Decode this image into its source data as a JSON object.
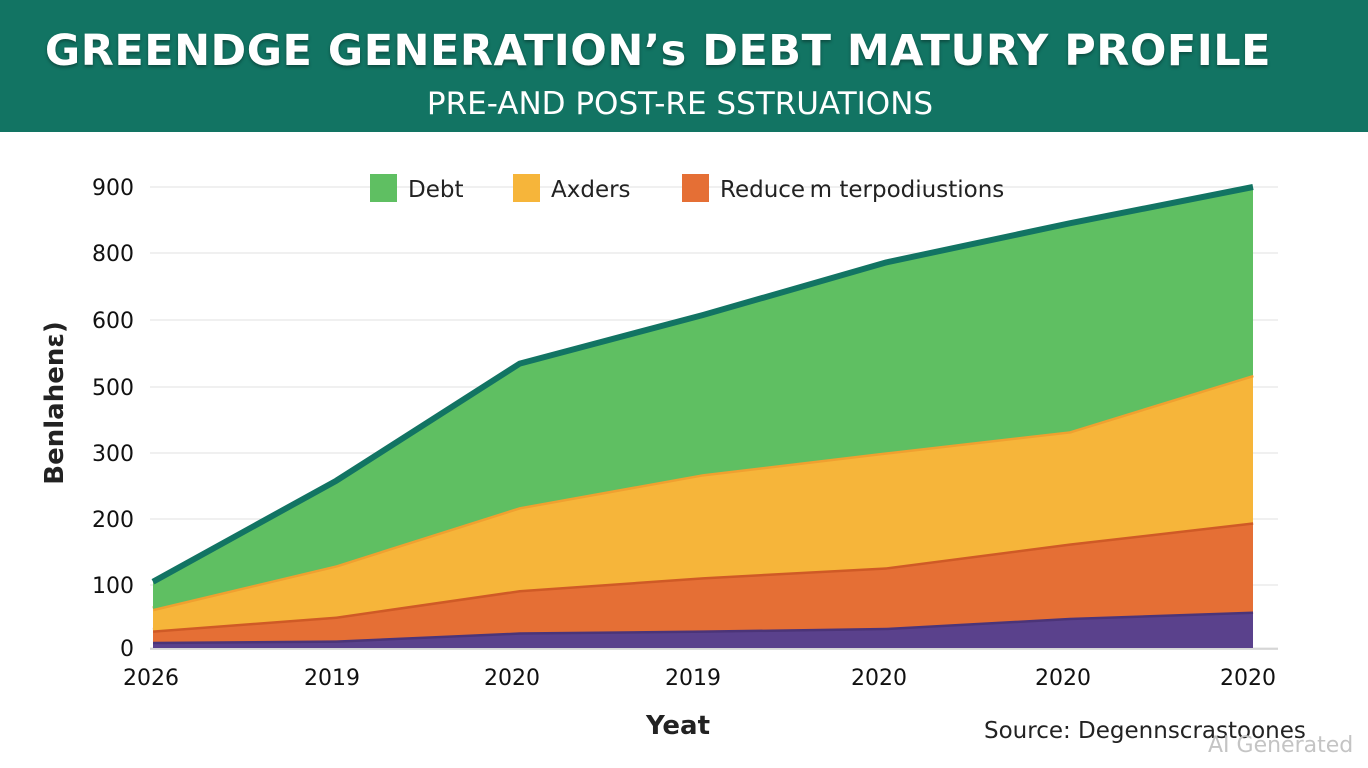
{
  "header": {
    "title": "GREENDGE GENERATION’s DEBT MATURY PROFILE",
    "subtitle": "PRE-AND POST-RE SSTRUATIONS"
  },
  "footer": {
    "source": "Source: Degennscrastoones",
    "watermark": "AI Generated"
  },
  "colors": {
    "banner": "#127463",
    "debt": "#5fbf62",
    "axders": "#f6b53a",
    "reduce": "#e56f35",
    "base": "#5a418c",
    "top_line": "#127463"
  },
  "chart_data": {
    "type": "area",
    "stacked": true,
    "title": "GREENDGE GENERATION’s DEBT MATURY PROFILE",
    "subtitle": "PRE-AND POST-RE SSTRUATIONS",
    "x_tick_labels": [
      "2026",
      "2019",
      "2020",
      "2019",
      "2020",
      "2020",
      "2020"
    ],
    "xlabel": "Yeat",
    "ylabel": "Benlahenɛ)",
    "y_ticks": [
      0,
      100,
      200,
      300,
      500,
      600,
      800,
      900
    ],
    "legend_position": "top",
    "grid": true,
    "series": [
      {
        "name": "",
        "color": "#5a418c",
        "cumulative_top": [
          10,
          12,
          25,
          28,
          32,
          48,
          58
        ]
      },
      {
        "name": "Reduce  m terpodiustions",
        "color": "#e56f35",
        "cumulative_top": [
          28,
          50,
          92,
          112,
          127,
          163,
          195
        ]
      },
      {
        "name": "Axders",
        "color": "#f6b53a",
        "cumulative_top": [
          62,
          130,
          218,
          268,
          302,
          366,
          518
        ]
      },
      {
        "name": "Debt",
        "color": "#5fbf62",
        "cumulative_top": [
          105,
          258,
          535,
          615,
          772,
          845,
          900
        ]
      }
    ]
  }
}
